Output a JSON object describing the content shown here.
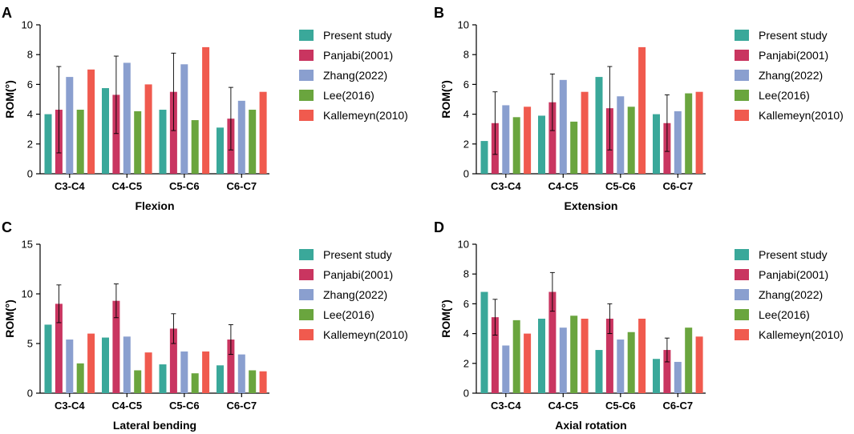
{
  "colors": {
    "Present study": "#3aa89a",
    "Panjabi(2001)": "#c93560",
    "Zhang(2022)": "#8a9fcf",
    "Lee(2016)": "#6aa53e",
    "Kallemeyn(2010)": "#f05a4e"
  },
  "chart_data": [
    {
      "type": "bar",
      "panel": "A",
      "xlabel": "Flexion",
      "ylabel": "ROM(°)",
      "ylim": [
        0,
        10
      ],
      "yticks": [
        0,
        2,
        4,
        6,
        8,
        10
      ],
      "categories": [
        "C3-C4",
        "C4-C5",
        "C5-C6",
        "C6-C7"
      ],
      "legend_position": "right",
      "series": [
        {
          "name": "Present study",
          "values": [
            4.0,
            5.75,
            4.3,
            3.1
          ]
        },
        {
          "name": "Panjabi(2001)",
          "values": [
            4.3,
            5.3,
            5.5,
            3.7
          ],
          "error": [
            2.9,
            2.6,
            2.6,
            2.1
          ]
        },
        {
          "name": "Zhang(2022)",
          "values": [
            6.5,
            7.45,
            7.35,
            4.9
          ]
        },
        {
          "name": "Lee(2016)",
          "values": [
            4.3,
            4.2,
            3.6,
            4.3
          ]
        },
        {
          "name": "Kallemeyn(2010)",
          "values": [
            7.0,
            6.0,
            8.5,
            5.5
          ]
        }
      ]
    },
    {
      "type": "bar",
      "panel": "B",
      "xlabel": "Extension",
      "ylabel": "ROM(°)",
      "ylim": [
        0,
        10
      ],
      "yticks": [
        0,
        2,
        4,
        6,
        8,
        10
      ],
      "categories": [
        "C3-C4",
        "C4-C5",
        "C5-C6",
        "C6-C7"
      ],
      "legend_position": "right",
      "series": [
        {
          "name": "Present study",
          "values": [
            2.2,
            3.9,
            6.5,
            4.0
          ]
        },
        {
          "name": "Panjabi(2001)",
          "values": [
            3.4,
            4.8,
            4.4,
            3.4
          ],
          "error": [
            2.1,
            1.9,
            2.8,
            1.9
          ]
        },
        {
          "name": "Zhang(2022)",
          "values": [
            4.6,
            6.3,
            5.2,
            4.2
          ]
        },
        {
          "name": "Lee(2016)",
          "values": [
            3.8,
            3.5,
            4.5,
            5.4
          ]
        },
        {
          "name": "Kallemeyn(2010)",
          "values": [
            4.5,
            5.5,
            8.5,
            5.5
          ]
        }
      ]
    },
    {
      "type": "bar",
      "panel": "C",
      "xlabel": "Lateral bending",
      "ylabel": "ROM(°)",
      "ylim": [
        0,
        15
      ],
      "yticks": [
        0,
        5,
        10,
        15
      ],
      "categories": [
        "C3-C4",
        "C4-C5",
        "C5-C6",
        "C6-C7"
      ],
      "legend_position": "right",
      "series": [
        {
          "name": "Present study",
          "values": [
            6.9,
            5.6,
            2.9,
            2.8
          ]
        },
        {
          "name": "Panjabi(2001)",
          "values": [
            9.0,
            9.3,
            6.5,
            5.4
          ],
          "error": [
            1.9,
            1.7,
            1.5,
            1.5
          ]
        },
        {
          "name": "Zhang(2022)",
          "values": [
            5.4,
            5.7,
            4.2,
            3.9
          ]
        },
        {
          "name": "Lee(2016)",
          "values": [
            3.0,
            2.3,
            2.0,
            2.3
          ]
        },
        {
          "name": "Kallemeyn(2010)",
          "values": [
            6.0,
            4.1,
            4.2,
            2.2
          ]
        }
      ]
    },
    {
      "type": "bar",
      "panel": "D",
      "xlabel": "Axial rotation",
      "ylabel": "ROM(°)",
      "ylim": [
        0,
        10
      ],
      "yticks": [
        0,
        2,
        4,
        6,
        8,
        10
      ],
      "categories": [
        "C3-C4",
        "C4-C5",
        "C5-C6",
        "C6-C7"
      ],
      "legend_position": "right",
      "series": [
        {
          "name": "Present study",
          "values": [
            6.8,
            5.0,
            2.9,
            2.3
          ]
        },
        {
          "name": "Panjabi(2001)",
          "values": [
            5.1,
            6.8,
            5.0,
            2.9
          ],
          "error": [
            1.2,
            1.3,
            1.0,
            0.8
          ]
        },
        {
          "name": "Zhang(2022)",
          "values": [
            3.2,
            4.4,
            3.6,
            2.1
          ]
        },
        {
          "name": "Lee(2016)",
          "values": [
            4.9,
            5.2,
            4.1,
            4.4
          ]
        },
        {
          "name": "Kallemeyn(2010)",
          "values": [
            4.0,
            5.0,
            5.0,
            3.8
          ]
        }
      ]
    }
  ]
}
